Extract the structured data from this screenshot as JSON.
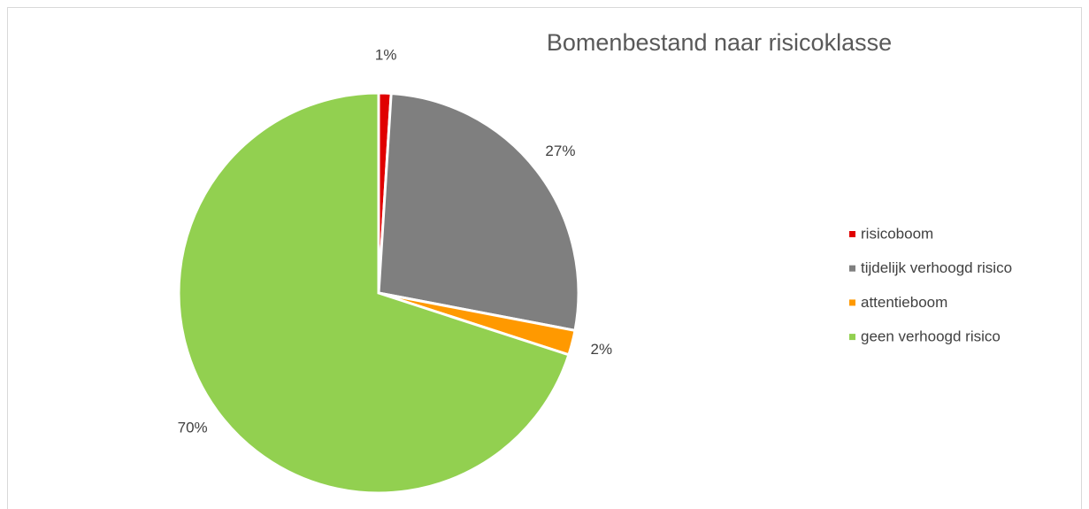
{
  "chart_data": {
    "type": "pie",
    "title": "Bomenbestand naar risicoklasse",
    "categories": [
      "risicoboom",
      "tijdelijk verhoogd risico",
      "attentieboom",
      "geen verhoogd risico"
    ],
    "values": [
      1,
      27,
      2,
      70
    ],
    "value_labels": [
      "1%",
      "27%",
      "2%",
      "70%"
    ],
    "colors": [
      "#e00000",
      "#7f7f7f",
      "#ff9900",
      "#92d050"
    ],
    "legend": "right"
  }
}
